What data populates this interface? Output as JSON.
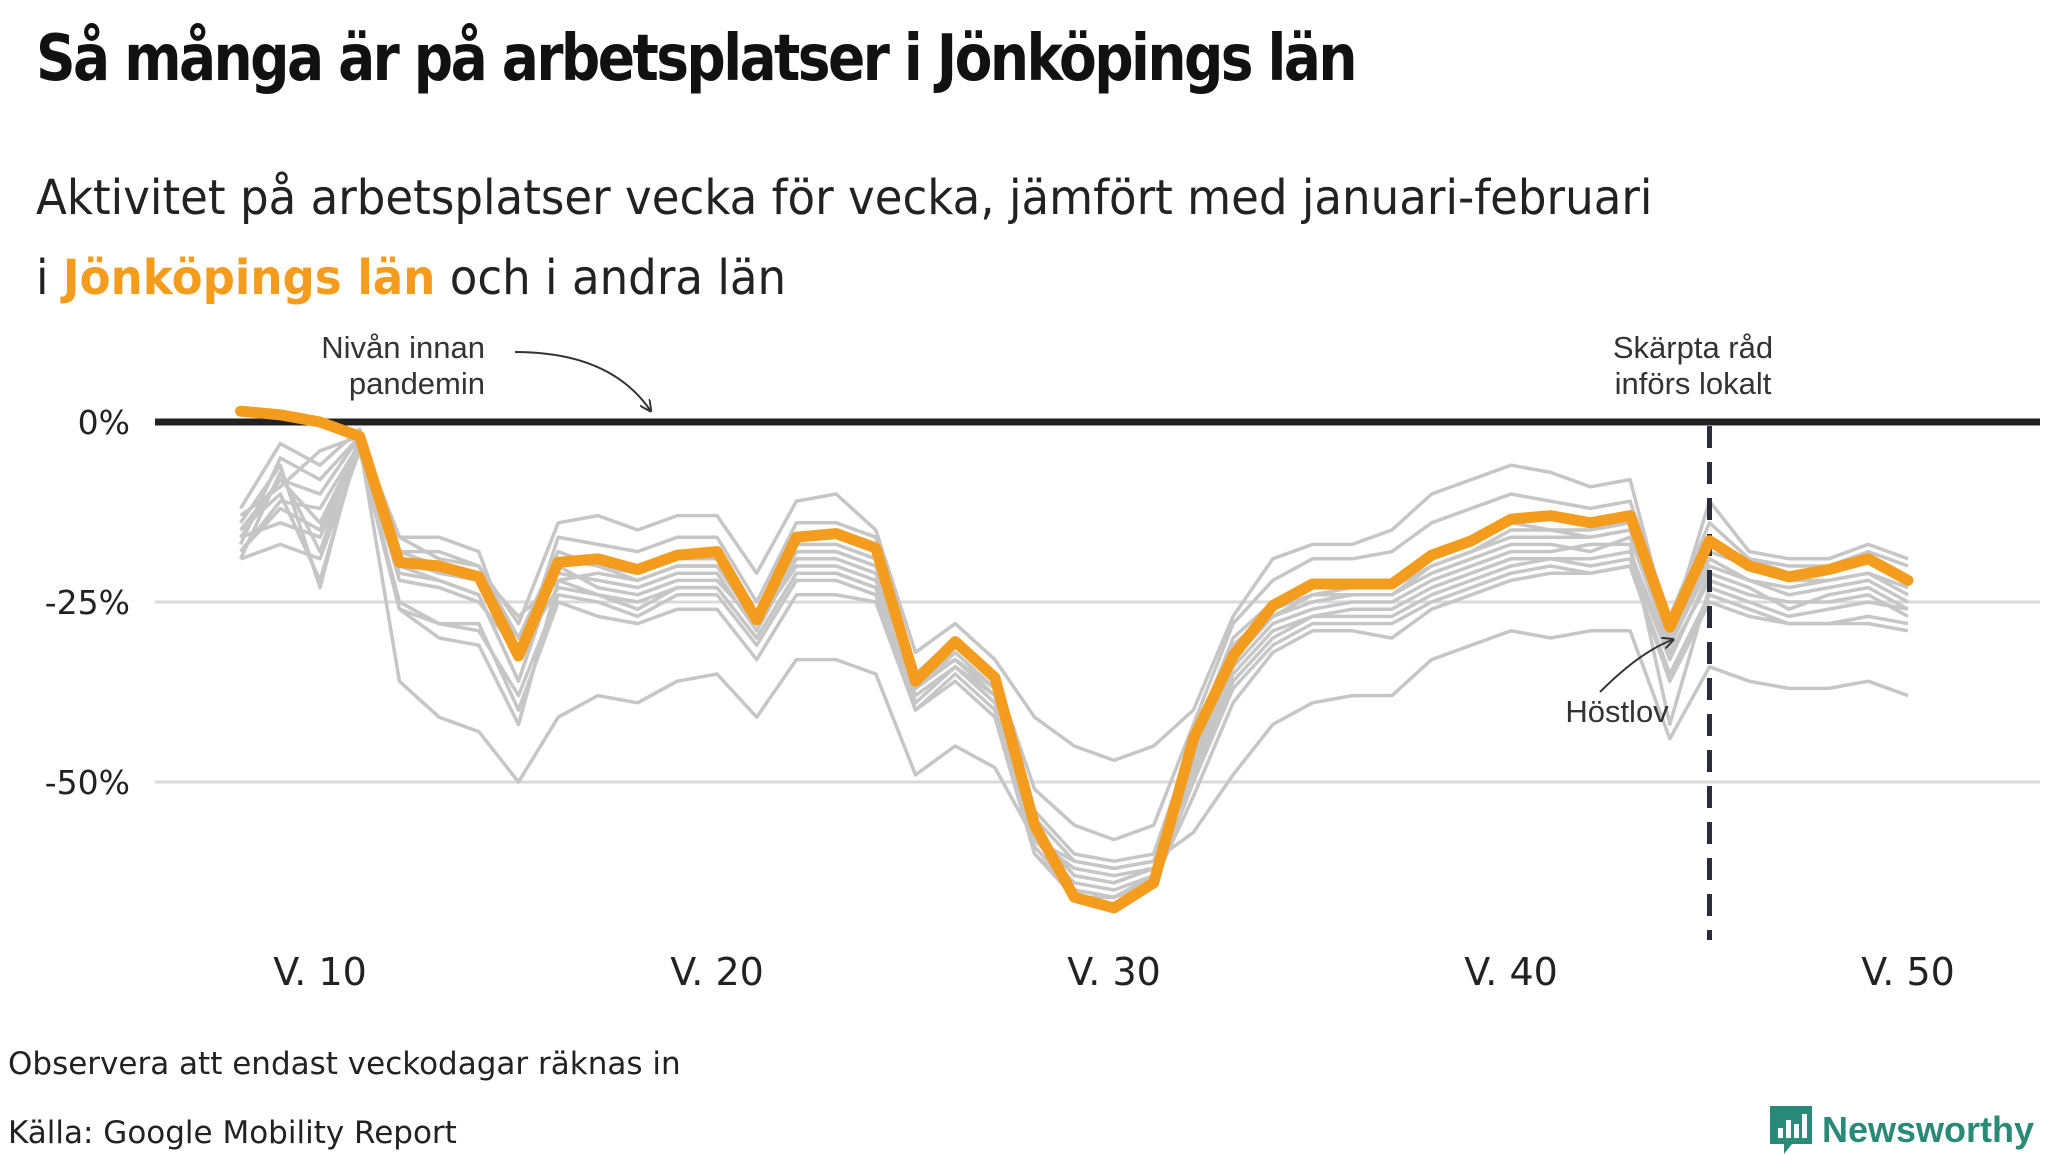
{
  "title": "Så många är på arbetsplatser i Jönköpings län",
  "subtitle": {
    "line1": "Aktivitet på arbetsplatser vecka för vecka, jämfört med januari-februari",
    "line2_prefix": "i ",
    "line2_highlight": "Jönköpings län",
    "line2_suffix": " och i andra län"
  },
  "annotations": {
    "baseline_line1": "Nivån innan",
    "baseline_line2": "pandemin",
    "advice_line1": "Skärpta råd",
    "advice_line2": "införs lokalt",
    "autumn_break": "Höstlov"
  },
  "footer": {
    "note": "Observera att endast veckodagar räknas in",
    "source": "Källa: Google Mobility Report",
    "brand": "Newsworthy"
  },
  "colors": {
    "highlight": "#f39c1e",
    "other": "#c6c6c6",
    "baseline": "#222222",
    "brand": "#2a8a78"
  },
  "chart_data": {
    "type": "line",
    "ylim": [
      -70,
      2
    ],
    "xlim": [
      6.5,
      53.5
    ],
    "yticks": [
      0,
      -25,
      -50
    ],
    "ytick_labels": [
      "0%",
      "-25%",
      "-50%"
    ],
    "xticks": [
      10,
      20,
      30,
      40,
      50
    ],
    "xtick_labels": [
      "V. 10",
      "V. 20",
      "V. 30",
      "V. 40",
      "V. 50"
    ],
    "baseline": 0,
    "event_week": 45,
    "autumn_break_week": 44,
    "x": [
      8,
      9,
      10,
      11,
      12,
      13,
      14,
      15,
      16,
      17,
      18,
      19,
      20,
      21,
      22,
      23,
      24,
      25,
      26,
      27,
      28,
      29,
      30,
      31,
      32,
      33,
      34,
      35,
      36,
      37,
      38,
      39,
      40,
      41,
      42,
      43,
      44,
      45,
      46,
      47,
      48,
      49,
      50
    ],
    "highlight": {
      "name": "Jönköpings län",
      "values": [
        1.5,
        1,
        0,
        -2,
        -19.5,
        -20,
        -21.5,
        -32.5,
        -19.5,
        -19,
        -20.5,
        -18.5,
        -18,
        -27.5,
        -16,
        -15.5,
        -17.5,
        -36,
        -30.5,
        -35.5,
        -56,
        -66,
        -67.5,
        -64,
        -44,
        -32.5,
        -25.5,
        -22.5,
        -22.5,
        -22.5,
        -18.5,
        -16.5,
        -13.5,
        -13,
        -14,
        -13,
        -28.5,
        -16.5,
        -20,
        -21.5,
        -20.5,
        -19,
        -22
      ]
    },
    "series": [
      {
        "values": [
          -12,
          -3,
          -6,
          -1,
          -18,
          -20,
          -21,
          -27,
          -22,
          -21,
          -22,
          -20,
          -20,
          -27,
          -18,
          -18,
          -20,
          -35,
          -31,
          -36,
          -55,
          -61,
          -62,
          -61,
          -45,
          -31,
          -26,
          -24,
          -23,
          -23,
          -20,
          -18,
          -16,
          -16,
          -16,
          -15,
          -28,
          -18,
          -20,
          -22,
          -22,
          -21,
          -24
        ]
      },
      {
        "values": [
          -16,
          -8,
          -10,
          -2,
          -19,
          -21,
          -22,
          -30,
          -21,
          -22,
          -23,
          -21,
          -21,
          -29,
          -19,
          -19,
          -21,
          -37,
          -32,
          -37,
          -57,
          -63,
          -64,
          -62,
          -46,
          -33,
          -27,
          -25,
          -24,
          -24,
          -21,
          -19,
          -17,
          -17,
          -18,
          -16,
          -31,
          -20,
          -22,
          -24,
          -23,
          -22,
          -25
        ]
      },
      {
        "values": [
          -18,
          -12,
          -15,
          -3,
          -22,
          -23,
          -25,
          -32,
          -23,
          -24,
          -25,
          -23,
          -23,
          -30,
          -21,
          -21,
          -23,
          -39,
          -34,
          -39,
          -58,
          -64,
          -65,
          -63,
          -48,
          -35,
          -29,
          -27,
          -26,
          -26,
          -23,
          -21,
          -19,
          -19,
          -19,
          -18,
          -32,
          -22,
          -24,
          -25,
          -25,
          -24,
          -27
        ]
      },
      {
        "values": [
          -19,
          -17,
          -19,
          -4,
          -25,
          -28,
          -29,
          -38,
          -24,
          -25,
          -27,
          -24,
          -24,
          -31,
          -22,
          -22,
          -24,
          -40,
          -35,
          -40,
          -60,
          -66,
          -66,
          -64,
          -50,
          -37,
          -31,
          -28,
          -28,
          -28,
          -25,
          -23,
          -21,
          -20,
          -21,
          -20,
          -35,
          -24,
          -26,
          -28,
          -28,
          -27,
          -28
        ]
      },
      {
        "values": [
          -15,
          -10,
          -22,
          -3,
          -20,
          -22,
          -24,
          -36,
          -20,
          -23,
          -24,
          -22,
          -22,
          -28,
          -20,
          -20,
          -22,
          -36,
          -33,
          -38,
          -59,
          -65,
          -66,
          -63,
          -47,
          -34,
          -28,
          -26,
          -25,
          -25,
          -22,
          -20,
          -18,
          -18,
          -17,
          -17,
          -42,
          -23,
          -25,
          -27,
          -26,
          -25,
          -26
        ]
      },
      {
        "values": [
          -14,
          -6,
          -23,
          -2,
          -26,
          -30,
          -31,
          -42,
          -22,
          -24,
          -26,
          -23,
          -23,
          -30,
          -21,
          -21,
          -23,
          -38,
          -34,
          -38,
          -58,
          -62,
          -63,
          -62,
          -49,
          -36,
          -30,
          -27,
          -27,
          -27,
          -24,
          -22,
          -20,
          -19,
          -20,
          -19,
          -33,
          -21,
          -23,
          -26,
          -24,
          -23,
          -26
        ]
      },
      {
        "values": [
          -13,
          -9,
          -4,
          -2,
          -16,
          -19,
          -20,
          -30,
          -18,
          -20,
          -21,
          -19,
          -19,
          -27,
          -17,
          -17,
          -19,
          -36,
          -31,
          -35,
          -54,
          -60,
          -61,
          -60,
          -44,
          -30,
          -25,
          -23,
          -22,
          -22,
          -19,
          -16,
          -14,
          -15,
          -15,
          -14,
          -27,
          -17,
          -19,
          -21,
          -20,
          -19,
          -22
        ]
      },
      {
        "values": [
          -17,
          -5,
          -8,
          -2,
          -18,
          -18,
          -20,
          -28,
          -14,
          -13,
          -15,
          -13,
          -13,
          -21,
          -11,
          -10,
          -15,
          -32,
          -28,
          -33,
          -41,
          -45,
          -47,
          -45,
          -40,
          -27,
          -19,
          -17,
          -17,
          -15,
          -10,
          -8,
          -6,
          -7,
          -9,
          -8,
          -29,
          -11,
          -18,
          -19,
          -19,
          -17,
          -19
        ]
      },
      {
        "values": [
          -19,
          -7,
          -18,
          -2,
          -16,
          -16,
          -18,
          -33,
          -16,
          -17,
          -18,
          -16,
          -16,
          -25,
          -14,
          -14,
          -16,
          -35,
          -30,
          -35,
          -51,
          -56,
          -58,
          -56,
          -42,
          -28,
          -22,
          -19,
          -19,
          -18,
          -14,
          -12,
          -10,
          -11,
          -12,
          -11,
          -27,
          -14,
          -19,
          -20,
          -20,
          -18,
          -20
        ]
      },
      {
        "values": [
          -18,
          -11,
          -12,
          -3,
          -36,
          -41,
          -43,
          -50,
          -41,
          -38,
          -39,
          -36,
          -35,
          -41,
          -33,
          -33,
          -35,
          -49,
          -45,
          -48,
          -58,
          -61,
          -62,
          -61,
          -57,
          -49,
          -42,
          -39,
          -38,
          -38,
          -33,
          -31,
          -29,
          -30,
          -29,
          -29,
          -44,
          -34,
          -36,
          -37,
          -37,
          -36,
          -38
        ]
      },
      {
        "values": [
          -16,
          -14,
          -16,
          -4,
          -26,
          -28,
          -28,
          -40,
          -25,
          -27,
          -28,
          -26,
          -26,
          -33,
          -24,
          -24,
          -25,
          -40,
          -36,
          -41,
          -60,
          -65,
          -66,
          -64,
          -52,
          -39,
          -32,
          -29,
          -29,
          -30,
          -26,
          -24,
          -22,
          -21,
          -21,
          -20,
          -36,
          -25,
          -27,
          -28,
          -28,
          -28,
          -29
        ]
      },
      {
        "values": [
          -15,
          -8,
          -14,
          -3,
          -21,
          -22,
          -24,
          -36,
          -19,
          -20,
          -22,
          -20,
          -20,
          -28,
          -18,
          -18,
          -20,
          -37,
          -33,
          -37,
          -57,
          -63,
          -64,
          -62,
          -47,
          -33,
          -27,
          -24,
          -24,
          -24,
          -20,
          -18,
          -15,
          -15,
          -16,
          -15,
          -30,
          -19,
          -22,
          -23,
          -22,
          -21,
          -23
        ]
      }
    ]
  }
}
